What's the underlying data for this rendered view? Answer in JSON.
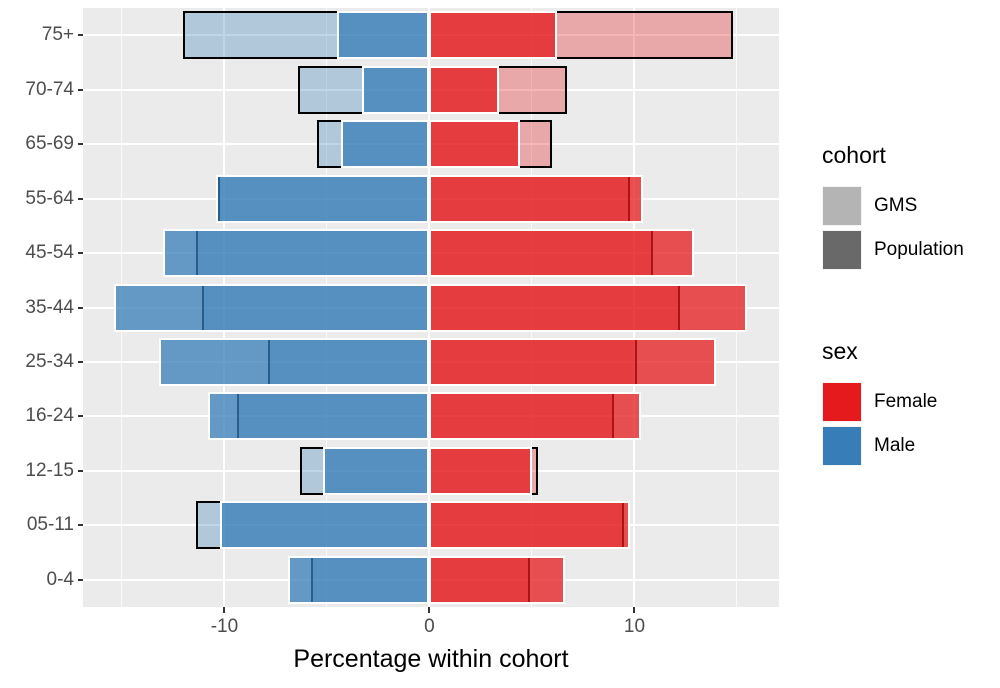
{
  "figure": {
    "panel_background": "#EBEBEB",
    "grid_color": "#FFFFFF",
    "axis_text_color": "#4D4D4D",
    "tick_color": "#333333"
  },
  "chart_data": {
    "type": "bar",
    "subtype": "population_pyramid_overlay",
    "orientation": "horizontal",
    "title": "",
    "xlabel": "Percentage within cohort",
    "ylabel": "",
    "categories": [
      "75+",
      "70-74",
      "65-69",
      "55-64",
      "45-54",
      "35-44",
      "25-34",
      "16-24",
      "12-15",
      "05-11",
      "0-4"
    ],
    "legend_position": "right",
    "grid": true,
    "note": "Male bars plotted on negative x side, Female on positive; GMS cohort bars (light fill, black outline) overlaid under Population bars (solid fill, white outline)",
    "series": [
      {
        "name": "Male Population",
        "sex": "Male",
        "cohort": "Population",
        "side": "left",
        "values": [
          -4.5,
          -3.3,
          -4.3,
          -10.4,
          -13.0,
          -15.4,
          -13.2,
          -10.8,
          -5.2,
          -10.2,
          -6.9
        ]
      },
      {
        "name": "Male GMS",
        "sex": "Male",
        "cohort": "GMS",
        "side": "left",
        "values": [
          -12.0,
          -6.4,
          -5.5,
          -10.3,
          -11.4,
          -11.1,
          -7.9,
          -9.4,
          -6.3,
          -11.4,
          -5.8
        ]
      },
      {
        "name": "Female Population",
        "sex": "Female",
        "cohort": "Population",
        "side": "right",
        "values": [
          6.2,
          3.4,
          4.4,
          10.4,
          12.9,
          15.5,
          14.0,
          10.3,
          5.0,
          9.8,
          6.6
        ]
      },
      {
        "name": "Female GMS",
        "sex": "Female",
        "cohort": "GMS",
        "side": "right",
        "values": [
          14.8,
          6.7,
          6.0,
          9.8,
          10.9,
          12.2,
          10.1,
          9.0,
          5.3,
          9.5,
          4.9
        ]
      }
    ],
    "x_ticks": [
      {
        "value": -10,
        "label": "-10"
      },
      {
        "value": 0,
        "label": "0"
      },
      {
        "value": 10,
        "label": "10"
      }
    ],
    "x_minor_ticks": [
      -15,
      -5,
      5,
      15
    ],
    "xlim": [
      -16.9,
      17.05
    ],
    "colors": {
      "Male": "#377EB8",
      "Female": "#E41A1C",
      "gms_fill_alpha": 0.32,
      "population_fill_alpha": 0.75,
      "gms_outline": "#000000",
      "population_outline": "#FFFFFF"
    }
  },
  "legends": [
    {
      "title": "cohort",
      "items": [
        {
          "label": "GMS",
          "color": "#B4B4B4"
        },
        {
          "label": "Population",
          "color": "#696969"
        }
      ]
    },
    {
      "title": "sex",
      "items": [
        {
          "label": "Female",
          "color": "#E41A1C"
        },
        {
          "label": "Male",
          "color": "#377EB8"
        }
      ]
    }
  ]
}
